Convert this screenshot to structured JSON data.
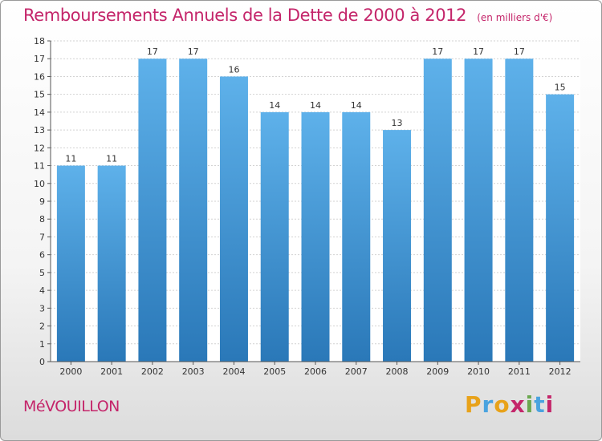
{
  "title": "Remboursements Annuels de la Dette de 2000 à 2012",
  "unit_note": "(en milliers d'€)",
  "place": "MéVOUILLON",
  "logo": {
    "letters": [
      "P",
      "r",
      "o",
      "x",
      "i",
      "t",
      "i"
    ],
    "colors": [
      "#e8a21a",
      "#4aa3df",
      "#e8a21a",
      "#c4256a",
      "#6aa84f",
      "#4aa3df",
      "#c4256a"
    ]
  },
  "colors": {
    "bar_light": "#5eb1ea",
    "bar_dark": "#2a78b8",
    "title": "#c4256a",
    "grid": "#d2d2d2",
    "axis": "#555555"
  },
  "chart_data": {
    "type": "bar",
    "categories": [
      "2000",
      "2001",
      "2002",
      "2003",
      "2004",
      "2005",
      "2006",
      "2007",
      "2008",
      "2009",
      "2010",
      "2011",
      "2012"
    ],
    "values": [
      11,
      11,
      17,
      17,
      16,
      14,
      14,
      14,
      13,
      17,
      17,
      17,
      15
    ],
    "data_labels": [
      "11",
      "11",
      "17",
      "17",
      "16",
      "14",
      "14",
      "14",
      "13",
      "17",
      "17",
      "17",
      "15"
    ],
    "yticks": [
      "0",
      "1",
      "2",
      "3",
      "4",
      "5",
      "6",
      "7",
      "8",
      "9",
      "10",
      "11",
      "12",
      "13",
      "14",
      "15",
      "16",
      "17",
      "18"
    ],
    "ylim": [
      0,
      18
    ],
    "grid": true,
    "legend": "none"
  }
}
